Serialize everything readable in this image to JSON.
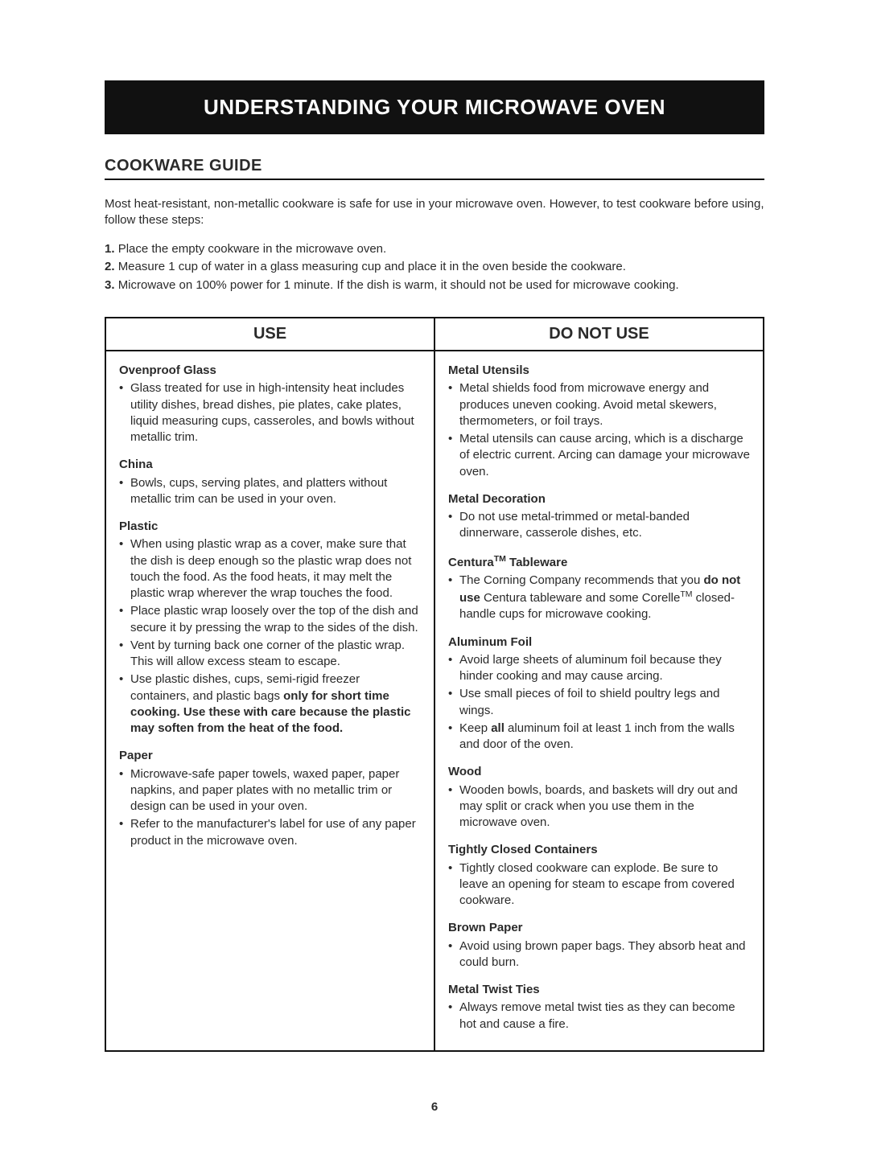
{
  "banner": "UNDERSTANDING YOUR MICROWAVE OVEN",
  "sectionTitle": "COOKWARE GUIDE",
  "intro": "Most heat-resistant, non-metallic cookware is safe for use in your microwave oven. However, to test cookware before using, follow these steps:",
  "steps": [
    {
      "num": "1.",
      "text": "Place the empty cookware in the microwave oven."
    },
    {
      "num": "2.",
      "text": "Measure 1 cup of water in a glass measuring cup and place it in the oven beside the cookware."
    },
    {
      "num": "3.",
      "text": "Microwave on 100% power for 1 minute. If the dish is warm, it should not be used for microwave cooking."
    }
  ],
  "headers": {
    "use": "USE",
    "doNotUse": "DO NOT USE"
  },
  "useCol": [
    {
      "title": "Ovenproof Glass",
      "items": [
        "Glass treated for use in high-intensity heat includes utility dishes, bread dishes, pie plates, cake plates, liquid measuring cups, casseroles, and bowls without metallic trim."
      ]
    },
    {
      "title": "China",
      "items": [
        "Bowls, cups, serving plates, and platters without metallic trim can be used in your oven."
      ]
    },
    {
      "title": "Plastic",
      "items": [
        "When using plastic wrap as a cover, make sure that the dish is deep enough so the plastic wrap does not touch the food. As the food heats, it may melt the plastic wrap wherever the wrap touches the food.",
        "Place plastic wrap loosely over the top of the dish and secure it by pressing the wrap to the sides of the dish.",
        "Vent by turning back one corner of the plastic wrap. This will allow excess steam to escape.",
        "Use plastic dishes, cups, semi-rigid freezer containers, and plastic bags <b>only for short time cooking. Use these with care because the plastic may soften from the heat of the food.</b>"
      ]
    },
    {
      "title": "Paper",
      "items": [
        "Microwave-safe paper towels, waxed paper, paper napkins, and paper plates with no metallic trim or design can be used in your oven.",
        "Refer to the manufacturer's label for use of any paper product in the microwave oven."
      ]
    }
  ],
  "doNotUseCol": [
    {
      "title": "Metal Utensils",
      "items": [
        "Metal shields food from microwave energy and produces uneven cooking. Avoid metal skewers, thermometers, or foil trays.",
        "Metal utensils can cause arcing, which is a discharge of electric current. Arcing can damage your microwave oven."
      ]
    },
    {
      "title": "Metal Decoration",
      "items": [
        "Do not use metal-trimmed or metal-banded dinnerware, casserole dishes, etc."
      ]
    },
    {
      "title": "Centura<span class=\"tm\">TM</span> Tableware",
      "items": [
        "The Corning Company recommends that you <b>do not use</b> Centura tableware and some Corelle<span class=\"tm\">TM</span> closed-handle cups for microwave cooking."
      ]
    },
    {
      "title": "Aluminum Foil",
      "items": [
        "Avoid large sheets of aluminum foil because they hinder cooking and may cause arcing.",
        "Use small pieces of foil to shield poultry legs and wings.",
        "Keep <b>all</b> aluminum foil at least 1 inch from the walls and door of the oven."
      ]
    },
    {
      "title": "Wood",
      "items": [
        "Wooden bowls, boards, and baskets will dry out and may split or crack when you use them in the microwave oven."
      ]
    },
    {
      "title": "Tightly Closed Containers",
      "items": [
        "Tightly closed cookware can explode. Be sure to leave an opening for steam to escape from covered cookware."
      ]
    },
    {
      "title": "Brown Paper",
      "items": [
        "Avoid using brown paper bags. They absorb heat and could burn."
      ]
    },
    {
      "title": "Metal Twist Ties",
      "items": [
        "Always remove metal twist ties as they can become hot and cause a fire."
      ]
    }
  ],
  "pageNumber": "6"
}
